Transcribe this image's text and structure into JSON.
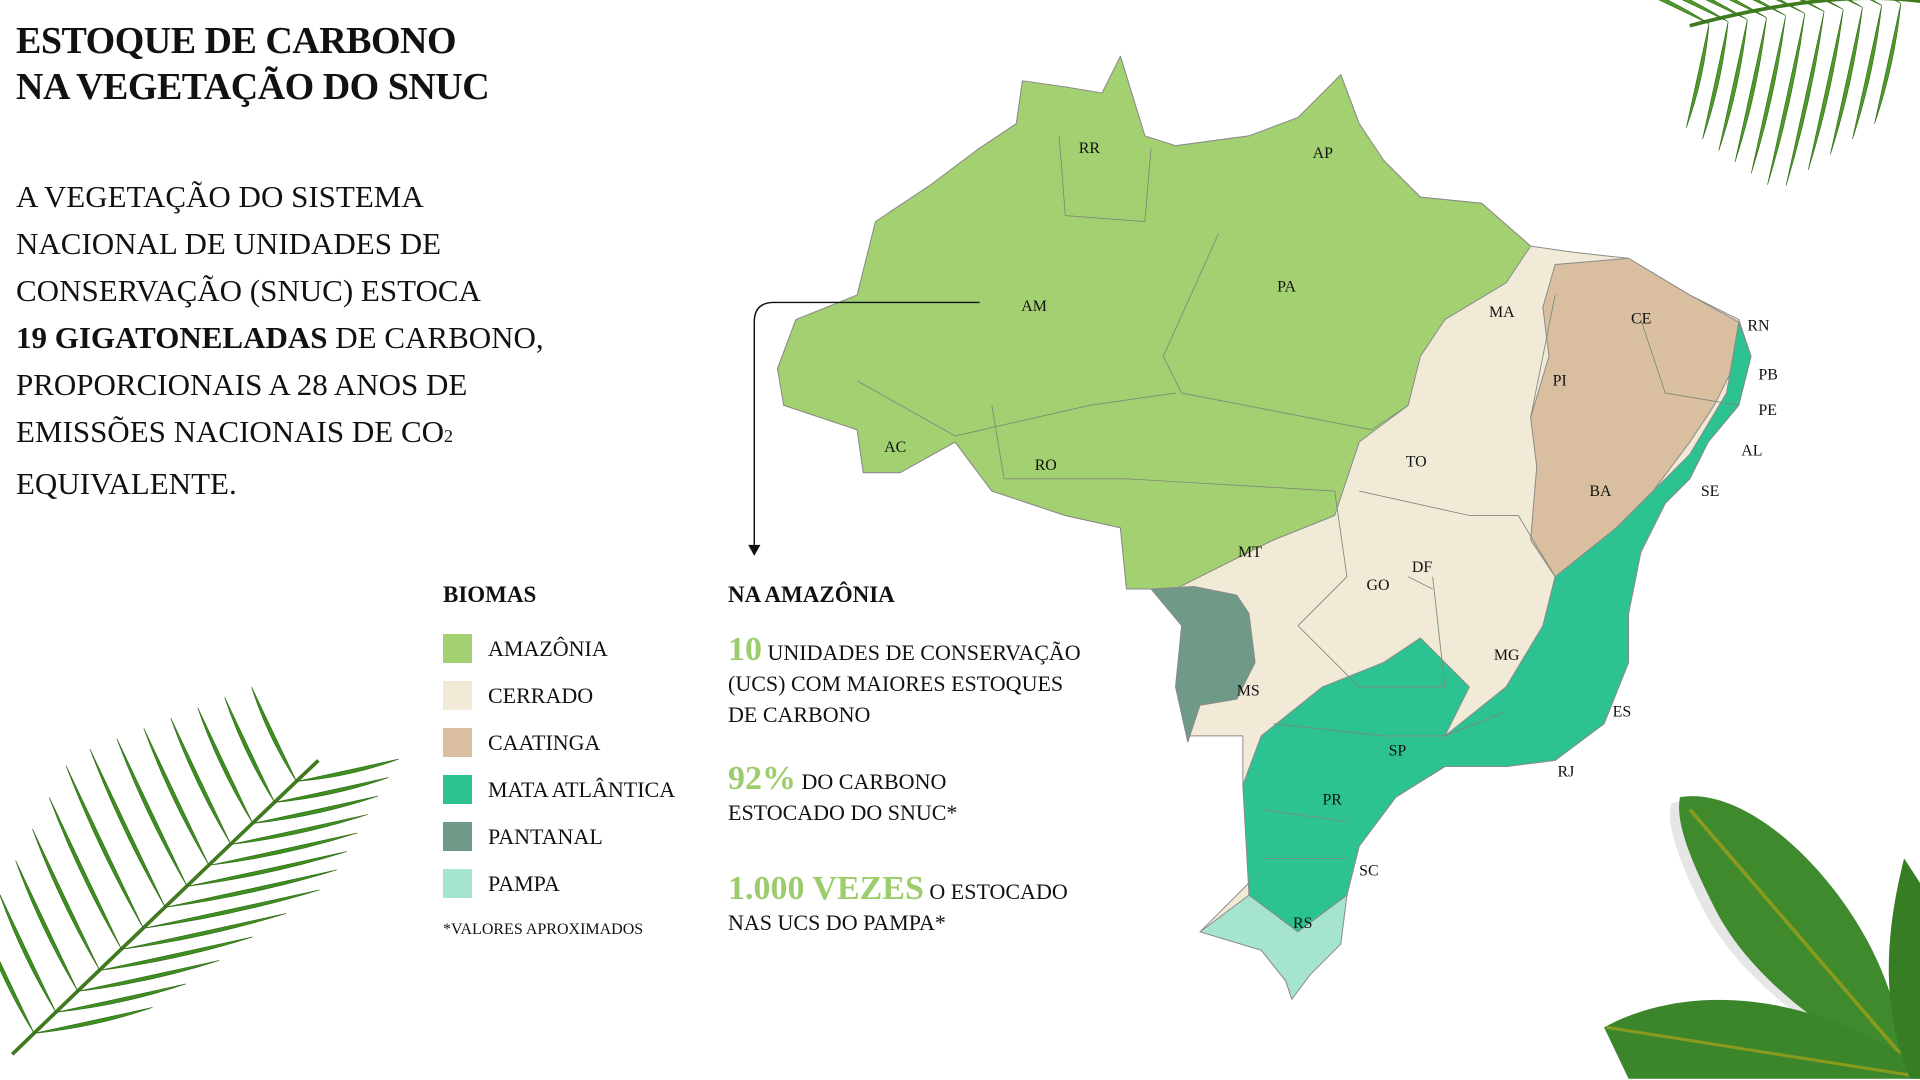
{
  "title": {
    "line1": "ESTOQUE DE CARBONO",
    "line2": "NA VEGETAÇÃO DO SNUC"
  },
  "intro": {
    "l1": "A VEGETAÇÃO DO SISTEMA",
    "l2": "NACIONAL DE UNIDADES DE",
    "l3": "CONSERVAÇÃO (SNUC) ESTOCA",
    "l4_bold": "19 GIGATONELADAS",
    "l4_rest": " DE CARBONO,",
    "l5": "PROPORCIONAIS A 28 ANOS DE",
    "l6_a": "EMISSÕES NACIONAIS DE CO",
    "l6_sub": "2",
    "l7": "EQUIVALENTE."
  },
  "legend": {
    "heading": "BIOMAS",
    "items": [
      {
        "label": "AMAZÔNIA",
        "color": "#a3d070"
      },
      {
        "label": "CERRADO",
        "color": "#f1ead6"
      },
      {
        "label": "CAATINGA",
        "color": "#d9bf9f"
      },
      {
        "label": "MATA ATLÂNTICA",
        "color": "#2cc291"
      },
      {
        "label": "PANTANAL",
        "color": "#6e9a87"
      },
      {
        "label": "PAMPA",
        "color": "#a5e4cf"
      }
    ],
    "footnote": "*VALORES APROXIMADOS"
  },
  "amazonia": {
    "heading": "NA AMAZÔNIA",
    "stats": [
      {
        "value": "10",
        "l1": " UNIDADES DE CONSERVAÇÃO",
        "l2": "(UCS) COM MAIORES ESTOQUES",
        "l3": "DE CARBONO"
      },
      {
        "value": "92%",
        "l1": " DO CARBONO",
        "l2": "ESTOCADO DO SNUC*"
      },
      {
        "value": "1.000 VEZES",
        "l1": " O ESTOCADO",
        "l2": "NAS UCS DO PAMPA*"
      }
    ],
    "accent": "#9ccc6c"
  },
  "map": {
    "states": [
      "RR",
      "AP",
      "AM",
      "PA",
      "MA",
      "CE",
      "RN",
      "PB",
      "PE",
      "AL",
      "SE",
      "PI",
      "AC",
      "RO",
      "TO",
      "BA",
      "MT",
      "DF",
      "GO",
      "MG",
      "ES",
      "MS",
      "SP",
      "RJ",
      "PR",
      "SC",
      "RS"
    ]
  }
}
